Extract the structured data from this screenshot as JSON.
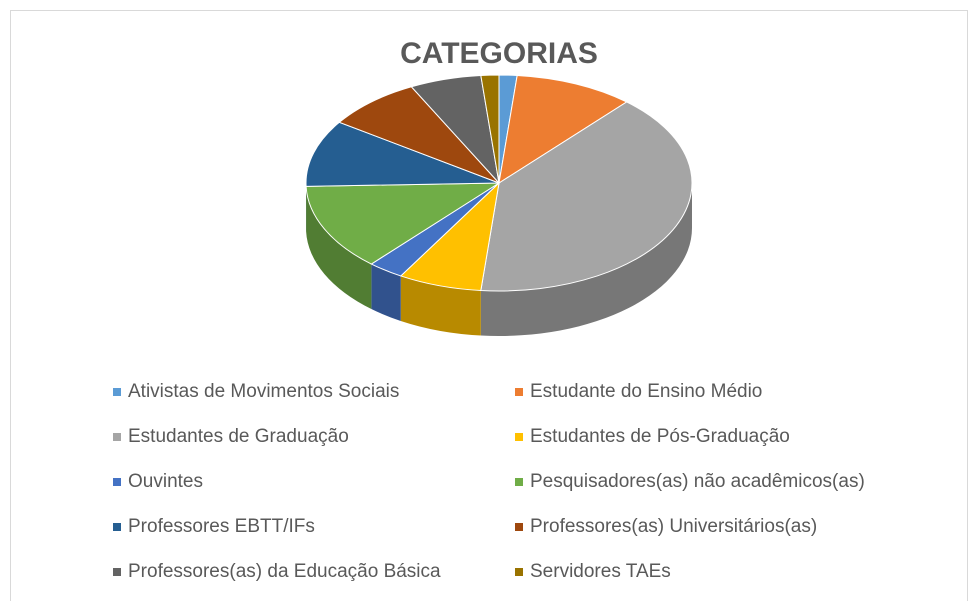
{
  "chart_data": {
    "type": "pie",
    "title": "CATEGORIAS",
    "categories": [
      "Ativistas de Movimentos Sociais",
      "Estudante do Ensino Médio",
      "Estudantes de Graduação",
      "Estudantes de Pós-Graduação",
      "Ouvintes",
      "Pesquisadores(as) não acadêmicos(as)",
      "Professores EBTT/IFs",
      "Professores(as) Universitários(as)",
      "Professores(as) da Educação Básica",
      "Servidores TAEs"
    ],
    "values": [
      1.5,
      10,
      40,
      7,
      3,
      13,
      10,
      8,
      6,
      1.5
    ],
    "colors": [
      "#5b9bd5",
      "#ed7d31",
      "#a5a5a5",
      "#ffc000",
      "#4472c4",
      "#70ad47",
      "#255e91",
      "#9e480e",
      "#636363",
      "#997300"
    ],
    "legend": "bottom"
  }
}
